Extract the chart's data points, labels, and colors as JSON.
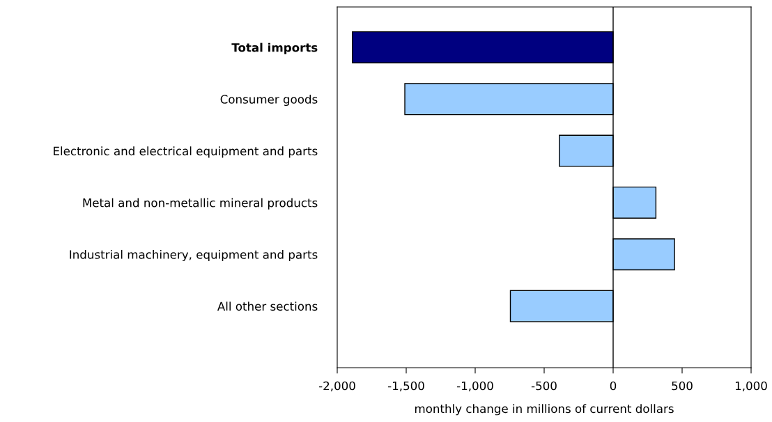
{
  "chart_data": {
    "type": "bar",
    "orientation": "horizontal",
    "xlabel": "monthly change in millions of current dollars",
    "categories": [
      "Total imports",
      "Consumer goods",
      "Electronic and electrical equipment and parts",
      "Metal and non-metallic mineral products",
      "Industrial machinery, equipment and parts",
      "All other sections"
    ],
    "values": [
      -1890,
      -1510,
      -390,
      310,
      445,
      -745
    ],
    "colors": [
      "#000080",
      "#99ccff",
      "#99ccff",
      "#99ccff",
      "#99ccff",
      "#99ccff"
    ],
    "xlim": [
      -2000,
      1000
    ],
    "xticks": [
      {
        "value": -2000,
        "label": "-2,000"
      },
      {
        "value": -1500,
        "label": "-1,500"
      },
      {
        "value": -1000,
        "label": "-1,000"
      },
      {
        "value": -500,
        "label": "-500"
      },
      0,
      500,
      {
        "value": 1000,
        "label": "1,000"
      }
    ],
    "tick_labels": "xy"
  }
}
